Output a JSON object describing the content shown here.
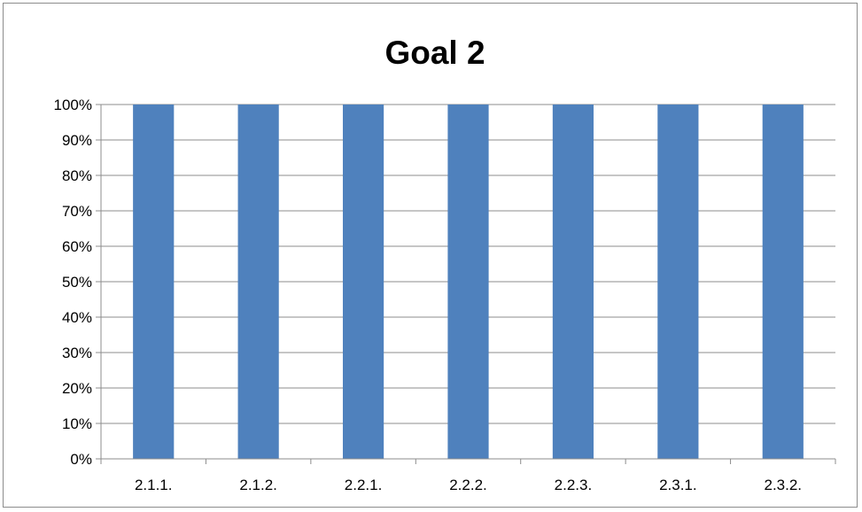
{
  "chart_data": {
    "type": "bar",
    "title": "Goal 2",
    "xlabel": "",
    "ylabel": "",
    "categories": [
      "2.1.1.",
      "2.1.2.",
      "2.2.1.",
      "2.2.2.",
      "2.2.3.",
      "2.3.1.",
      "2.3.2."
    ],
    "values": [
      100,
      100,
      100,
      100,
      100,
      100,
      100
    ],
    "ylim": [
      0,
      100
    ],
    "yticks": [
      "0%",
      "10%",
      "20%",
      "30%",
      "40%",
      "50%",
      "60%",
      "70%",
      "80%",
      "90%",
      "100%"
    ],
    "grid": true,
    "legend": "none",
    "bar_color": "#4F81BD"
  }
}
